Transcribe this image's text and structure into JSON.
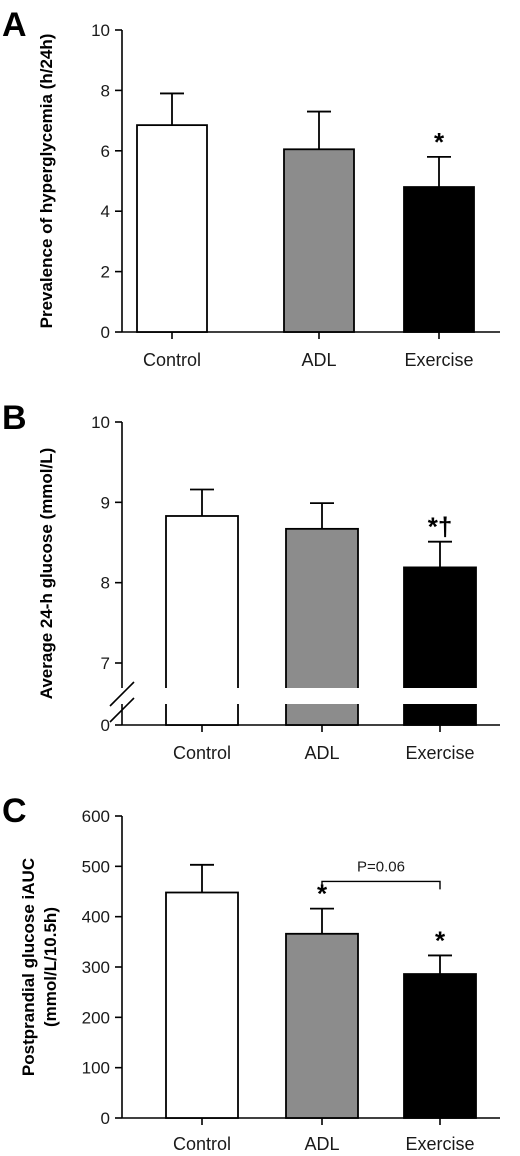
{
  "chart_data": [
    {
      "type": "bar",
      "panel": "A",
      "categories": [
        "Control",
        "ADL",
        "Exercise"
      ],
      "values": [
        6.85,
        6.05,
        4.8
      ],
      "errors": [
        1.05,
        1.25,
        1.0
      ],
      "colors": [
        "#ffffff",
        "#8c8c8c",
        "#000000"
      ],
      "ylabel": "Prevalence of hyperglycemia (h/24h)",
      "ylim": [
        0,
        10
      ],
      "yticks": [
        0,
        2,
        4,
        6,
        8,
        10
      ],
      "ytick_labels": [
        "0",
        "2",
        "4",
        "6",
        "8",
        "10"
      ],
      "annotations": [
        "",
        "",
        "*"
      ],
      "axis_break": false
    },
    {
      "type": "bar",
      "panel": "B",
      "categories": [
        "Control",
        "ADL",
        "Exercise"
      ],
      "values": [
        8.83,
        8.67,
        8.19
      ],
      "errors": [
        0.33,
        0.32,
        0.32
      ],
      "colors": [
        "#ffffff",
        "#8c8c8c",
        "#000000"
      ],
      "ylabel": "Average 24-h glucose (mmol/L)",
      "ylim": [
        0,
        10
      ],
      "yticks": [
        0,
        7,
        8,
        9,
        10
      ],
      "ytick_labels": [
        "0",
        "7",
        "8",
        "9",
        "10"
      ],
      "annotations": [
        "",
        "",
        "*†"
      ],
      "axis_break": true
    },
    {
      "type": "bar",
      "panel": "C",
      "categories": [
        "Control",
        "ADL",
        "Exercise"
      ],
      "values": [
        448,
        366,
        286
      ],
      "errors": [
        55,
        50,
        37
      ],
      "colors": [
        "#ffffff",
        "#8c8c8c",
        "#000000"
      ],
      "ylabel": "Postprandial glucose iAUC (mmol/L/10.5h)",
      "ylabel_lines": [
        "Postprandial glucose iAUC",
        "(mmol/L/10.5h)"
      ],
      "ylim": [
        0,
        600
      ],
      "yticks": [
        0,
        100,
        200,
        300,
        400,
        500,
        600
      ],
      "ytick_labels": [
        "0",
        "100",
        "200",
        "300",
        "400",
        "500",
        "600"
      ],
      "annotations": [
        "",
        "*",
        "*"
      ],
      "bracket": {
        "from": 1,
        "to": 2,
        "label": "P=0.06"
      },
      "axis_break": false
    }
  ]
}
